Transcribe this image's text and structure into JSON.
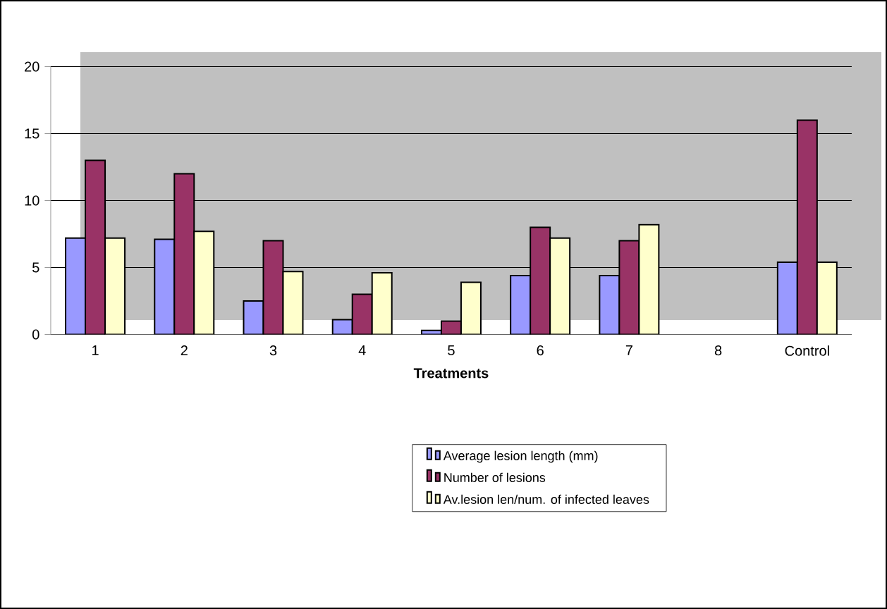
{
  "chart_data": {
    "type": "bar",
    "xlabel": "Treatments",
    "categories": [
      "1",
      "2",
      "3",
      "4",
      "5",
      "6",
      "7",
      "8",
      "Control"
    ],
    "series": [
      {
        "name": "Average lesion length (mm)",
        "color": "#9999ff",
        "values": [
          7.2,
          7.1,
          2.5,
          1.1,
          0.3,
          4.4,
          4.4,
          null,
          5.4
        ]
      },
      {
        "name": "Number of lesions",
        "color": "#993366",
        "values": [
          13,
          12,
          7,
          3,
          1,
          8,
          7,
          null,
          16
        ]
      },
      {
        "name": "Av.lesion len/num. of infected leaves",
        "color": "#ffffcc",
        "values": [
          7.2,
          7.7,
          4.7,
          4.6,
          3.9,
          7.2,
          8.2,
          null,
          5.4
        ]
      }
    ],
    "ylim": [
      0,
      20
    ],
    "yticks": [
      0,
      5,
      10,
      15,
      20
    ],
    "grid": "y",
    "legend": "bottom"
  }
}
